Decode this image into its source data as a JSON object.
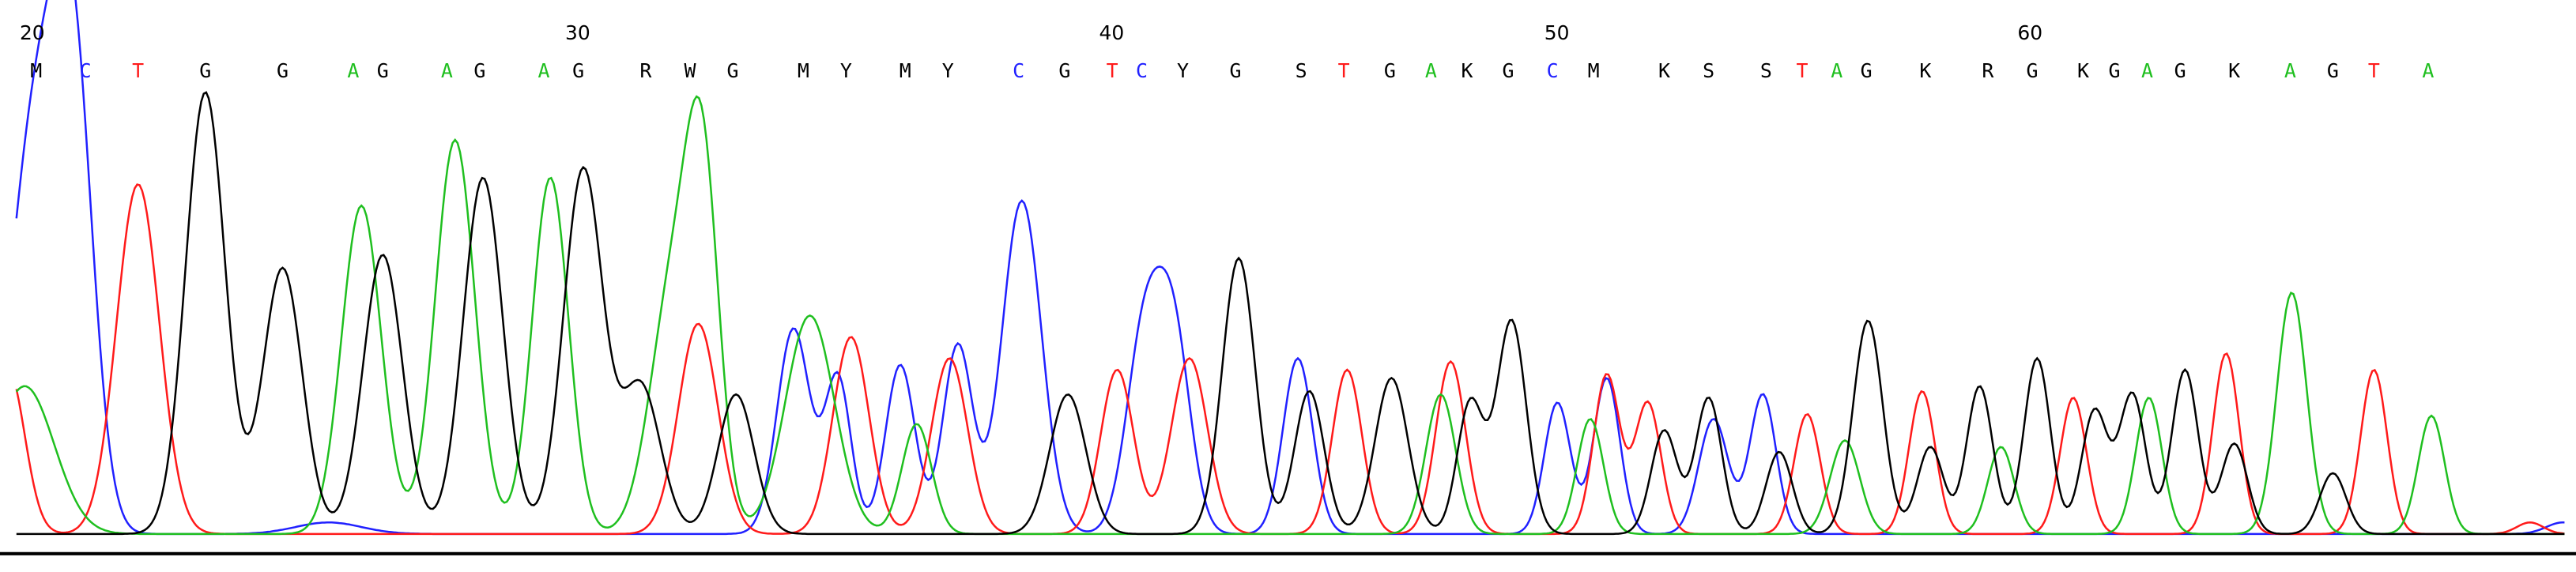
{
  "ruler": [
    20,
    30,
    40,
    50,
    60
  ],
  "bases": [
    "M",
    "C",
    "T",
    "G",
    "G",
    "A",
    "G",
    "A",
    "G",
    "A",
    "G",
    "R",
    "W",
    "G",
    "M",
    "Y",
    "M",
    "Y",
    "C",
    "G",
    "T",
    "C",
    "Y",
    "G",
    "S",
    "T",
    "G",
    "A",
    "K",
    "G",
    "C",
    "M",
    "K",
    "S",
    "S",
    "T",
    "A",
    "G",
    "K",
    "R",
    "G",
    "K",
    "G",
    "A",
    "G",
    "K",
    "A",
    "G",
    "T",
    "A"
  ],
  "base_colors": {
    "A": "#1fbf1f",
    "C": "#2020ff",
    "G": "#000000",
    "T": "#ff1a1a",
    "other": "#000000"
  }
}
